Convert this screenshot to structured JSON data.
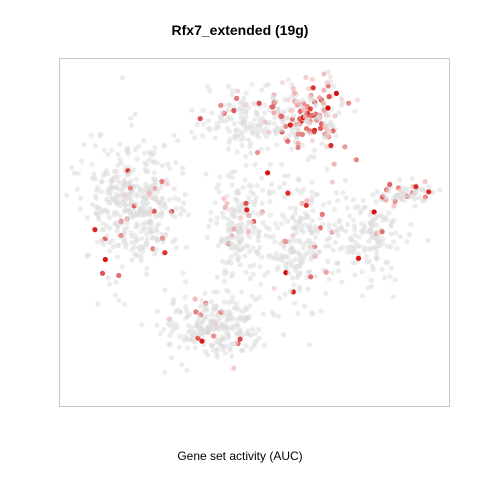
{
  "chart_data": {
    "type": "scatter",
    "title": "Rfx7_extended (19g)",
    "xlabel": "Gene set activity (AUC)",
    "ylabel": "",
    "axes": "none",
    "grid": false,
    "base_color": "#dcdcdc",
    "low_color": "#f6d0d0",
    "high_color": "#d40000",
    "clusters": [
      {
        "name": "upper-center",
        "center": [
          255,
          125
        ],
        "spread": [
          55,
          30
        ],
        "points": 190,
        "activity": 0.08
      },
      {
        "name": "top-right-high",
        "center": [
          310,
          115
        ],
        "spread": [
          32,
          32
        ],
        "points": 170,
        "activity": 0.55
      },
      {
        "name": "left-large",
        "center": [
          135,
          205
        ],
        "spread": [
          45,
          60
        ],
        "points": 420,
        "activity": 0.06
      },
      {
        "name": "center",
        "center": [
          240,
          225
        ],
        "spread": [
          25,
          45
        ],
        "points": 170,
        "activity": 0.07
      },
      {
        "name": "center-right",
        "center": [
          300,
          240
        ],
        "spread": [
          35,
          50
        ],
        "points": 220,
        "activity": 0.12
      },
      {
        "name": "right",
        "center": [
          370,
          235
        ],
        "spread": [
          28,
          45
        ],
        "points": 150,
        "activity": 0.1
      },
      {
        "name": "far-right-arm",
        "center": [
          405,
          195
        ],
        "spread": [
          25,
          10
        ],
        "points": 60,
        "activity": 0.3
      },
      {
        "name": "bottom",
        "center": [
          215,
          325
        ],
        "spread": [
          45,
          30
        ],
        "points": 260,
        "activity": 0.08
      }
    ]
  }
}
